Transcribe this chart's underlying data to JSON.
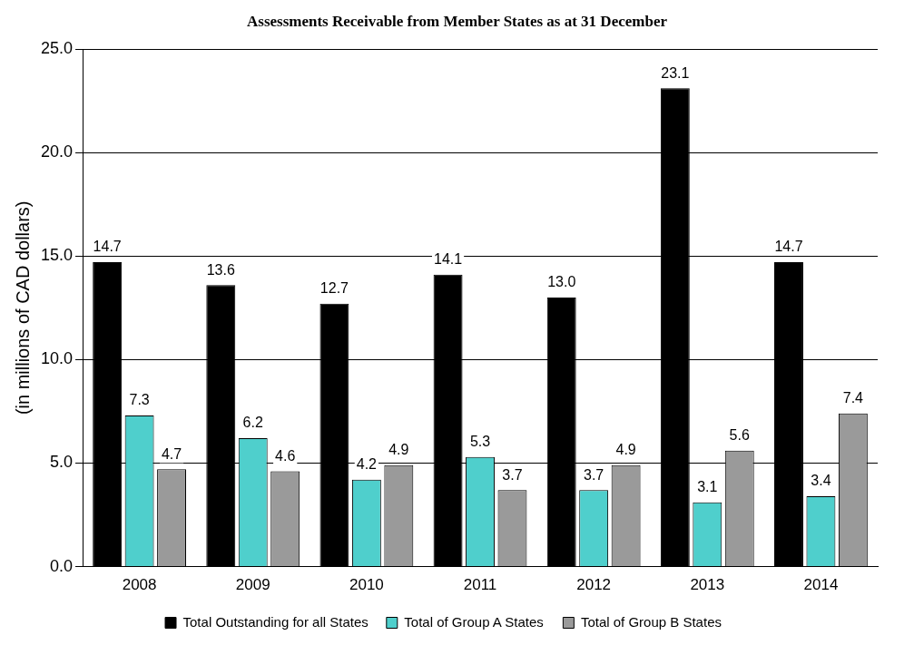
{
  "chart_data": {
    "type": "bar",
    "title": "Assessments Receivable from Member States as at 31 December",
    "ylabel": "(in millions of CAD dollars)",
    "categories": [
      "2008",
      "2009",
      "2010",
      "2011",
      "2012",
      "2013",
      "2014"
    ],
    "series": [
      {
        "name": "Total Outstanding for all States",
        "color": "#000000",
        "values": [
          14.7,
          13.6,
          12.7,
          14.1,
          13.0,
          23.1,
          14.7
        ],
        "value_labels": [
          "14.7",
          "13.6",
          "12.7",
          "14.1",
          "13.0",
          "23.1",
          "14.7"
        ]
      },
      {
        "name": "Total of Group A States",
        "color": "#4fcfcc",
        "values": [
          7.3,
          6.2,
          4.2,
          5.3,
          3.7,
          3.1,
          3.4
        ],
        "value_labels": [
          "7.3",
          "6.2",
          "4.2",
          "5.3",
          "3.7",
          "3.1",
          "3.4"
        ]
      },
      {
        "name": "Total of Group B States",
        "color": "#9a9a9a",
        "values": [
          4.7,
          4.6,
          4.9,
          3.7,
          4.9,
          5.6,
          7.4
        ],
        "value_labels": [
          "4.7",
          "4.6",
          "4.9",
          "3.7",
          "4.9",
          "5.6",
          "7.4"
        ]
      }
    ],
    "ylim": [
      0,
      25
    ],
    "yticks": [
      {
        "value": 0,
        "label": "0.0"
      },
      {
        "value": 5,
        "label": "5.0"
      },
      {
        "value": 10,
        "label": "10.0"
      },
      {
        "value": 15,
        "label": "15.0"
      },
      {
        "value": 20,
        "label": "20.0"
      },
      {
        "value": 25,
        "label": "25.0"
      }
    ],
    "grid": "y",
    "legend": "bottom"
  }
}
